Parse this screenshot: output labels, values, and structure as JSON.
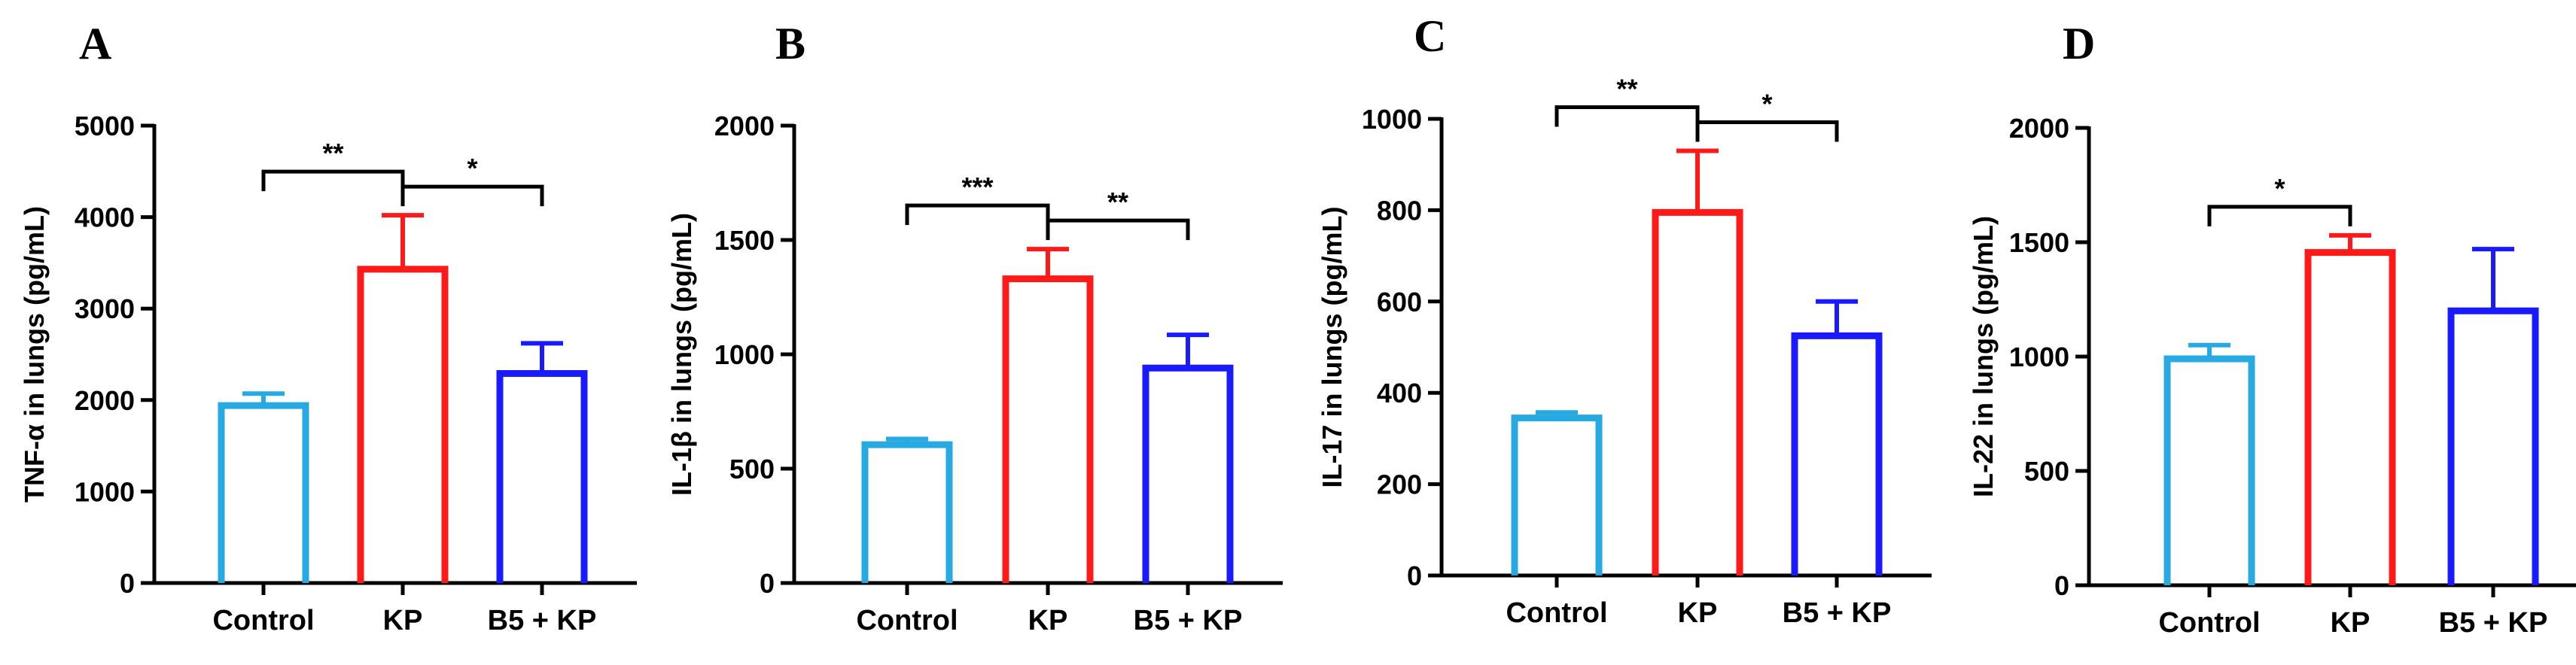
{
  "chart_data": [
    {
      "panel": "A",
      "type": "bar",
      "ylabel": "TNF-α in lungs (pg/mL)",
      "categories": [
        "Control",
        "KP",
        "B5 + KP"
      ],
      "values": [
        1940,
        3430,
        2290
      ],
      "errors": [
        130,
        590,
        330
      ],
      "colors": [
        "#27aae1",
        "#ff1a1a",
        "#1a1aff"
      ],
      "ylim": [
        0,
        5000
      ],
      "yticks": [
        "0",
        "1000",
        "2000",
        "3000",
        "4000",
        "5000"
      ],
      "significance": [
        {
          "from": 0,
          "to": 1,
          "label": "**"
        },
        {
          "from": 1,
          "to": 2,
          "label": "*"
        }
      ]
    },
    {
      "panel": "B",
      "type": "bar",
      "ylabel": "IL-1β in lungs (pg/mL)",
      "categories": [
        "Control",
        "KP",
        "B5 + KP"
      ],
      "values": [
        605,
        1330,
        940
      ],
      "errors": [
        25,
        130,
        145
      ],
      "colors": [
        "#27aae1",
        "#ff1a1a",
        "#1a1aff"
      ],
      "ylim": [
        0,
        2000
      ],
      "yticks": [
        "0",
        "500",
        "1000",
        "1500",
        "2000"
      ],
      "significance": [
        {
          "from": 0,
          "to": 1,
          "label": "***"
        },
        {
          "from": 1,
          "to": 2,
          "label": "**"
        }
      ]
    },
    {
      "panel": "C",
      "type": "bar",
      "ylabel": "IL-17 in lungs (pg/mL)",
      "categories": [
        "Control",
        "KP",
        "B5 + KP"
      ],
      "values": [
        345,
        795,
        525
      ],
      "errors": [
        12,
        135,
        75
      ],
      "colors": [
        "#27aae1",
        "#ff1a1a",
        "#1a1aff"
      ],
      "ylim": [
        0,
        1000
      ],
      "yticks": [
        "0",
        "200",
        "400",
        "600",
        "800",
        "1000"
      ],
      "significance": [
        {
          "from": 0,
          "to": 1,
          "label": "**"
        },
        {
          "from": 1,
          "to": 2,
          "label": "*"
        }
      ]
    },
    {
      "panel": "D",
      "type": "bar",
      "ylabel": "IL-22 in lungs (pg/mL)",
      "categories": [
        "Control",
        "KP",
        "B5 + KP"
      ],
      "values": [
        990,
        1455,
        1200
      ],
      "errors": [
        60,
        75,
        270
      ],
      "colors": [
        "#27aae1",
        "#ff1a1a",
        "#1a1aff"
      ],
      "ylim": [
        0,
        2000
      ],
      "yticks": [
        "0",
        "500",
        "1000",
        "1500",
        "2000"
      ],
      "significance": [
        {
          "from": 0,
          "to": 1,
          "label": "*"
        }
      ]
    }
  ]
}
